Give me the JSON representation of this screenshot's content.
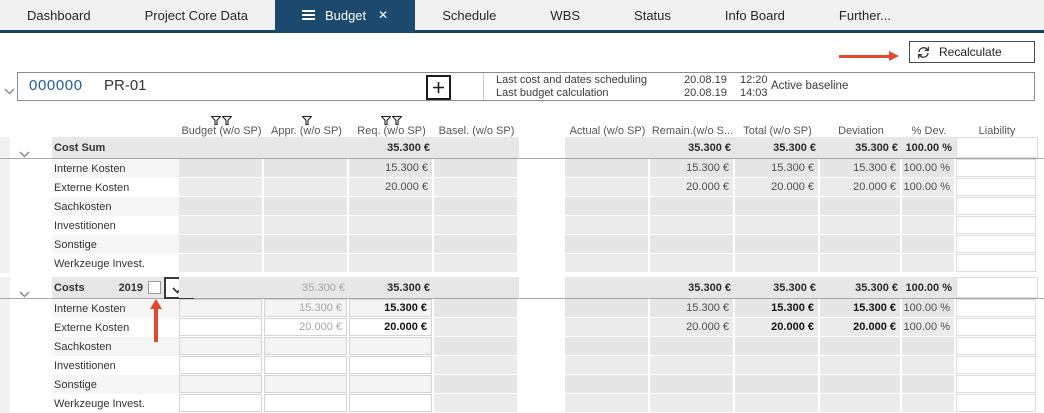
{
  "tabs": [
    {
      "label": "Dashboard"
    },
    {
      "label": "Project Core Data"
    },
    {
      "label": "Budget"
    },
    {
      "label": "Schedule"
    },
    {
      "label": "WBS"
    },
    {
      "label": "Status"
    },
    {
      "label": "Info Board"
    },
    {
      "label": "Further..."
    }
  ],
  "toolbar": {
    "recalculate": "Recalculate"
  },
  "project": {
    "number": "000000",
    "code": "PR-01",
    "baseline_status": "Active baseline",
    "info_rows": [
      {
        "label": "Last cost and dates scheduling",
        "date": "20.08.19",
        "time": "12:20"
      },
      {
        "label": "Last budget calculation",
        "date": "20.08.19",
        "time": "14:03"
      }
    ]
  },
  "table": {
    "headers": [
      {
        "label": "Budget (w/o SP)",
        "funnels": 2
      },
      {
        "label": "Appr. (w/o SP)",
        "funnels": 1
      },
      {
        "label": "Req. (w/o SP)",
        "funnels": 2
      },
      {
        "label": "Basel. (w/o SP)",
        "funnels": 0
      },
      {
        "label": "Actual (w/o SP)",
        "funnels": 0
      },
      {
        "label": "Remain.(w/o S...",
        "funnels": 0
      },
      {
        "label": "Total (w/o SP)",
        "funnels": 0
      },
      {
        "label": "Deviation",
        "funnels": 0
      },
      {
        "label": "% Dev.",
        "funnels": 0
      },
      {
        "label": "Liability",
        "funnels": 0
      }
    ],
    "groups": [
      {
        "title": "Cost Sum",
        "has_checkbox": false,
        "summary": {
          "req": "35.300 €",
          "remain": "35.300 €",
          "total": "35.300 €",
          "deviation": "35.300 €",
          "pdev": "100.00 %"
        },
        "rows": [
          {
            "label": "Interne Kosten",
            "values": {
              "req": "15.300 €",
              "remain": "15.300 €",
              "total": "15.300 €",
              "deviation": "15.300 €",
              "pdev": "100.00 %"
            }
          },
          {
            "label": "Externe Kosten",
            "values": {
              "req": "20.000 €",
              "remain": "20.000 €",
              "total": "20.000 €",
              "deviation": "20.000 €",
              "pdev": "100.00 %"
            }
          },
          {
            "label": "Sachkosten",
            "values": {}
          },
          {
            "label": "Investitionen",
            "values": {}
          },
          {
            "label": "Sonstige",
            "values": {}
          },
          {
            "label": "Werkzeuge Invest.",
            "values": {}
          }
        ]
      },
      {
        "title": "Costs",
        "year": "2019",
        "has_checkbox": true,
        "checkbox_checked": true,
        "summary": {
          "appr": "35.300 €",
          "req": "35.300 €",
          "remain": "35.300 €",
          "total": "35.300 €",
          "deviation": "35.300 €",
          "pdev": "100.00 %"
        },
        "rows": [
          {
            "label": "Interne Kosten",
            "values": {
              "appr": "15.300 €",
              "req": "15.300 €",
              "remain": "15.300 €",
              "total": "15.300 €",
              "deviation": "15.300 €",
              "pdev": "100.00 %"
            }
          },
          {
            "label": "Externe Kosten",
            "values": {
              "appr": "20.000 €",
              "req": "20.000 €",
              "remain": "20.000 €",
              "total": "20.000 €",
              "deviation": "20.000 €",
              "pdev": "100.00 %"
            }
          },
          {
            "label": "Sachkosten",
            "values": {}
          },
          {
            "label": "Investitionen",
            "values": {}
          },
          {
            "label": "Sonstige",
            "values": {}
          },
          {
            "label": "Werkzeuge Invest.",
            "values": {}
          }
        ]
      }
    ]
  }
}
